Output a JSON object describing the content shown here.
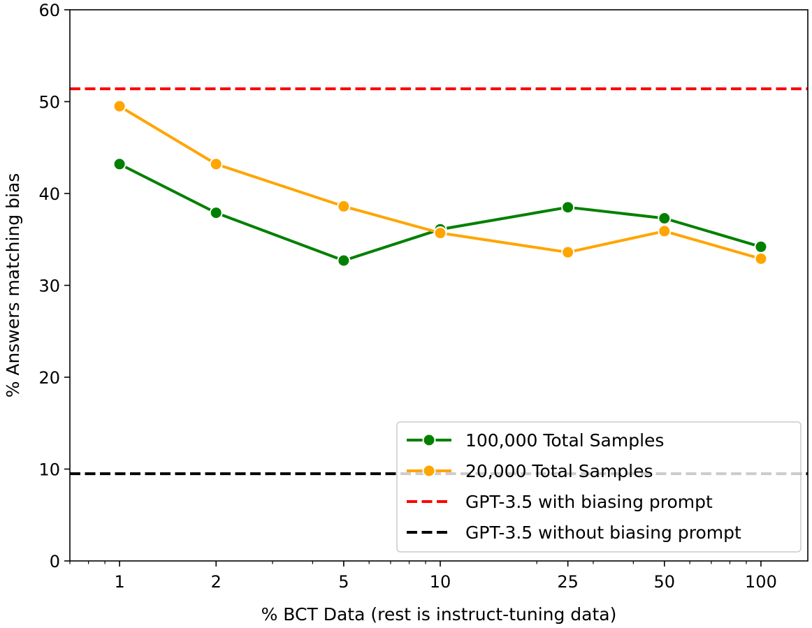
{
  "chart_data": {
    "type": "line",
    "title": "",
    "xlabel": "% BCT Data (rest is instruct-tuning data)",
    "ylabel": "% Answers matching bias",
    "xscale": "log",
    "xlim": [
      0.7,
      140
    ],
    "ylim": [
      0,
      60
    ],
    "x": [
      1,
      2,
      5,
      10,
      25,
      50,
      100
    ],
    "x_tick_labels": [
      "1",
      "2",
      "5",
      "10",
      "25",
      "50",
      "100"
    ],
    "y_ticks": [
      0,
      10,
      20,
      30,
      40,
      50,
      60
    ],
    "y_tick_labels": [
      "0",
      "10",
      "20",
      "30",
      "40",
      "50",
      "60"
    ],
    "grid": false,
    "legend_position": "lower-right",
    "series": [
      {
        "name": "100,000 Total Samples",
        "color": "#008000",
        "style": "line-marker",
        "values": [
          43.2,
          37.9,
          32.7,
          36.1,
          38.5,
          37.3,
          34.2
        ]
      },
      {
        "name": "20,000 Total Samples",
        "color": "#FFA500",
        "style": "line-marker",
        "values": [
          49.5,
          43.2,
          38.6,
          35.7,
          33.6,
          35.9,
          32.9
        ]
      }
    ],
    "reference_lines": [
      {
        "name": "GPT-3.5 with biasing prompt",
        "color": "#FF0000",
        "value": 51.4
      },
      {
        "name": "GPT-3.5 without biasing prompt",
        "color": "#000000",
        "value": 9.5
      }
    ]
  }
}
